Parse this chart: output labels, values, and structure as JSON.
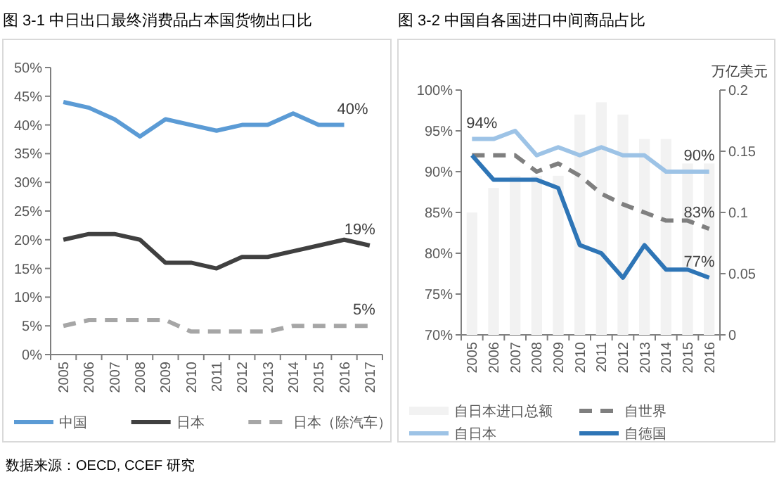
{
  "chart_data": [
    {
      "type": "line",
      "title": "图 3-1  中日出口最终消费品占本国货物出口比",
      "categories": [
        "2005",
        "2006",
        "2007",
        "2008",
        "2009",
        "2010",
        "2011",
        "2012",
        "2013",
        "2014",
        "2015",
        "2016",
        "2017"
      ],
      "series": [
        {
          "name": "中国",
          "color": "#5b9bd5",
          "values": [
            44,
            43,
            41,
            38,
            41,
            40,
            39,
            40,
            40,
            42,
            40,
            40,
            null
          ],
          "value_labels": [
            null,
            null,
            null,
            null,
            null,
            null,
            null,
            null,
            null,
            null,
            null,
            "40%",
            null
          ]
        },
        {
          "name": "日本",
          "color": "#404040",
          "values": [
            20,
            21,
            21,
            20,
            16,
            16,
            15,
            17,
            17,
            18,
            19,
            20,
            19
          ],
          "value_labels": [
            null,
            null,
            null,
            null,
            null,
            null,
            null,
            null,
            null,
            null,
            null,
            null,
            "19%"
          ]
        },
        {
          "name": "日本（除汽车）",
          "color": "#a6a6a6",
          "line_style": "dashed",
          "values": [
            5,
            6,
            6,
            6,
            6,
            4,
            4,
            4,
            4,
            5,
            5,
            5,
            5
          ],
          "value_labels": [
            null,
            null,
            null,
            null,
            null,
            null,
            null,
            null,
            null,
            null,
            null,
            null,
            "5%"
          ]
        }
      ],
      "ylim": [
        0,
        50
      ],
      "yticks": [
        {
          "value": 0,
          "label": "0%"
        },
        {
          "value": 5,
          "label": "5%"
        },
        {
          "value": 10,
          "label": "10%"
        },
        {
          "value": 15,
          "label": "15%"
        },
        {
          "value": 20,
          "label": "20%"
        },
        {
          "value": 25,
          "label": "25%"
        },
        {
          "value": 30,
          "label": "30%"
        },
        {
          "value": 35,
          "label": "35%"
        },
        {
          "value": 40,
          "label": "40%"
        },
        {
          "value": 45,
          "label": "45%"
        },
        {
          "value": 50,
          "label": "50%"
        }
      ],
      "grid": false,
      "legend": "bottom",
      "annotations": [
        "数据来源：OECD, CCEF 研究"
      ]
    },
    {
      "type": "line",
      "title": "图 3-2  中国自各国进口中间商品占比",
      "y2label": "万亿美元",
      "categories": [
        "2005",
        "2006",
        "2007",
        "2008",
        "2009",
        "2010",
        "2011",
        "2012",
        "2013",
        "2014",
        "2015",
        "2016"
      ],
      "series": [
        {
          "name": "自日本进口总额",
          "type": "bar",
          "axis": "y2",
          "color": "#f2f2f2",
          "values": [
            0.1,
            0.12,
            0.13,
            0.13,
            0.13,
            0.18,
            0.19,
            0.18,
            0.16,
            0.16,
            0.14,
            0.14
          ]
        },
        {
          "name": "自世界",
          "color": "#7f7f7f",
          "line_style": "dashed",
          "values": [
            92,
            92,
            92,
            90,
            91,
            89.5,
            87.3,
            86,
            85,
            84,
            84,
            83
          ],
          "value_labels": [
            null,
            null,
            null,
            null,
            null,
            null,
            null,
            null,
            null,
            null,
            null,
            "83%"
          ]
        },
        {
          "name": "自日本",
          "color": "#9dc3e6",
          "values": [
            94,
            94,
            95,
            92,
            93,
            92,
            93,
            92,
            92,
            90,
            90,
            90
          ],
          "value_labels": [
            "94%",
            null,
            null,
            null,
            null,
            null,
            null,
            null,
            null,
            null,
            null,
            "90%"
          ]
        },
        {
          "name": "自德国",
          "color": "#2e75b6",
          "values": [
            92,
            89,
            89,
            89,
            88,
            81,
            80,
            77,
            81,
            78,
            78,
            77
          ],
          "value_labels": [
            null,
            null,
            null,
            null,
            null,
            null,
            null,
            null,
            null,
            null,
            null,
            "77%"
          ]
        }
      ],
      "ylim": [
        70,
        100
      ],
      "yticks": [
        {
          "value": 70,
          "label": "70%"
        },
        {
          "value": 75,
          "label": "75%"
        },
        {
          "value": 80,
          "label": "80%"
        },
        {
          "value": 85,
          "label": "85%"
        },
        {
          "value": 90,
          "label": "90%"
        },
        {
          "value": 95,
          "label": "95%"
        },
        {
          "value": 100,
          "label": "100%"
        }
      ],
      "y2lim": [
        0,
        0.2
      ],
      "y2ticks": [
        0,
        0.05,
        0.1,
        0.15,
        0.2
      ],
      "grid": false,
      "legend": "bottom"
    }
  ]
}
